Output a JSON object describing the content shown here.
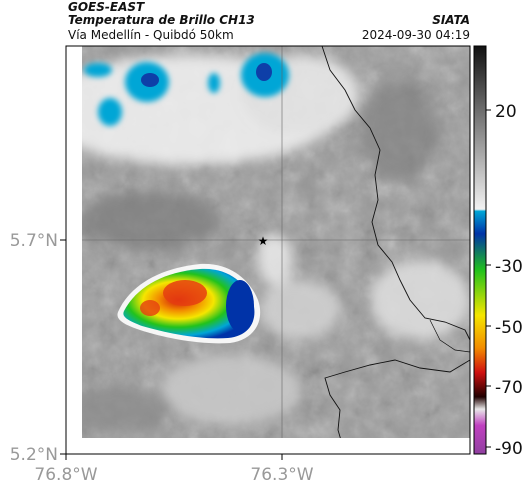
{
  "header": {
    "satellite": "GOES-EAST",
    "product": "Temperatura de Brillo CH13",
    "organization": "SIATA",
    "region": "Vía Medellín - Quibdó 50km",
    "datetime": "2024-09-30 04:19"
  },
  "map": {
    "lat_ticks": [
      "5.7°N",
      "5.2°N"
    ],
    "lon_ticks": [
      "76.8°W",
      "76.3°W"
    ],
    "marker": "location-star"
  },
  "colorbar": {
    "ticks": [
      "20",
      "-30",
      "-50",
      "-70",
      "-90"
    ],
    "colors": {
      "warm_gray_top": "#111111",
      "light_gray": "#f2f2f2",
      "cyan": "#00a6d6",
      "blue": "#0033a8",
      "green": "#22c21c",
      "yellow": "#f5e600",
      "orange": "#f28c00",
      "red": "#d01010",
      "dark": "#200000",
      "magenta": "#c040c0"
    }
  }
}
